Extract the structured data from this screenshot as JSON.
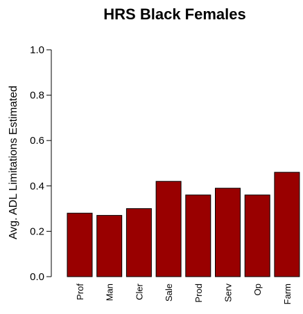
{
  "chart_data": {
    "type": "bar",
    "title": "HRS Black Females",
    "xlabel": "",
    "ylabel": "Avg. ADL Limitations Estimated",
    "categories": [
      "Prof",
      "Man",
      "Cler",
      "Sale",
      "Prod",
      "Serv",
      "Op",
      "Farm"
    ],
    "values": [
      0.28,
      0.27,
      0.3,
      0.42,
      0.36,
      0.39,
      0.36,
      0.46
    ],
    "ylim": [
      0,
      1.0
    ],
    "yticks": [
      "0.0",
      "0.2",
      "0.4",
      "0.6",
      "0.8",
      "1.0"
    ],
    "grid": false,
    "bar_color": "#990000"
  }
}
